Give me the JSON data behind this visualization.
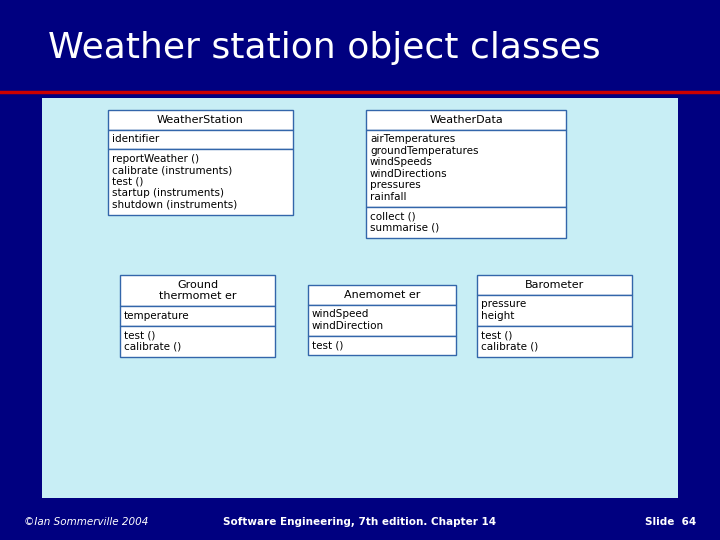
{
  "title": "Weather station object classes",
  "title_color": "#FFFFFF",
  "slide_bg": "#000080",
  "content_bg": "#C8EEF5",
  "box_bg": "#FFFFFF",
  "box_border": "#3366AA",
  "red_line_color": "#CC0000",
  "footer_left": "©Ian Sommerville 2004",
  "footer_center": "Software Engineering, 7th edition. Chapter 14",
  "footer_right": "Slide  64",
  "title_fontsize": 26,
  "content_fontsize": 7.5,
  "name_fontsize": 8,
  "footer_fontsize": 7.5
}
